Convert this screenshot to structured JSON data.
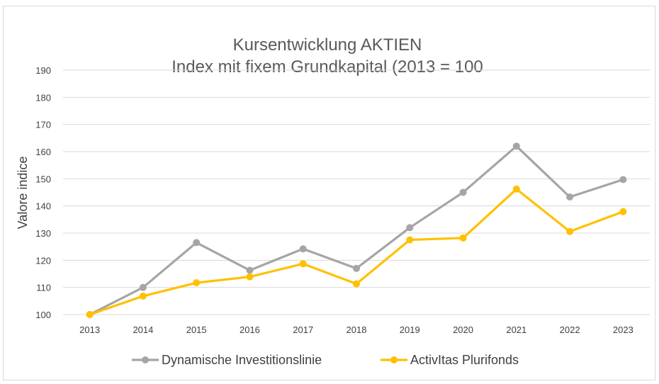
{
  "chart_data": {
    "type": "line",
    "title": "Kursentwicklung AKTIEN",
    "subtitle": "Index mit fixem Grundkapital (2013 = 100",
    "xlabel": "",
    "ylabel": "Valore indice",
    "categories": [
      "2013",
      "2014",
      "2015",
      "2016",
      "2017",
      "2018",
      "2019",
      "2020",
      "2021",
      "2022",
      "2023"
    ],
    "y_ticks": [
      "100",
      "110",
      "120",
      "130",
      "140",
      "150",
      "160",
      "170",
      "180",
      "190"
    ],
    "ylim": [
      100,
      190
    ],
    "grid": true,
    "legend_position": "bottom",
    "series": [
      {
        "name": "Dynamische Investitionslinie",
        "color": "#a5a5a5",
        "values": [
          100,
          110,
          126.5,
          116.3,
          124.2,
          117,
          132,
          145,
          162,
          143.3,
          149.7
        ]
      },
      {
        "name": "ActivItas Plurifonds",
        "color": "#ffc000",
        "values": [
          100,
          106.8,
          111.7,
          113.9,
          118.7,
          111.3,
          127.5,
          128.2,
          146.2,
          130.6,
          137.9
        ]
      }
    ]
  }
}
